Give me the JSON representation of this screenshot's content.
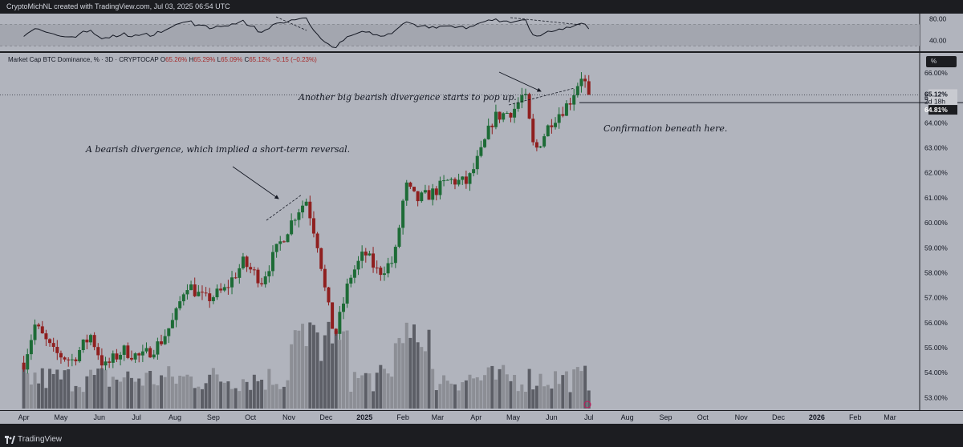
{
  "header": {
    "credit": "CryptoMichNL created with TradingView.com, Jul 03, 2025 06:54 UTC"
  },
  "legend": {
    "symbol": "Market Cap BTC Dominance, % · 3D · CRYPTOCAP",
    "o_label": "O",
    "o": "65.26%",
    "h_label": "H",
    "h": "65.29%",
    "l_label": "L",
    "l": "65.09%",
    "c_label": "C",
    "c": "65.12%",
    "chg": "−0.15 (−0.23%)"
  },
  "toolbar": {
    "percent_button": "%"
  },
  "annotations": {
    "first": "A bearish divergence, which implied a short-term reversal.",
    "second": "Another big bearish divergence starts to pop up.",
    "third": "Confirmation beneath here."
  },
  "price_tag": {
    "value": "65.12%",
    "countdown": "2d 18h"
  },
  "level_tag": {
    "value": "64.81%"
  },
  "footer": {
    "brand": "TradingView"
  },
  "colors": {
    "up": "#1d6b36",
    "down": "#8f1f1f",
    "bg": "#b1b4bd",
    "dark": "#1c1d21",
    "volume": "#5c5e66"
  },
  "chart_data": [
    {
      "type": "candlestick",
      "title": "Market Cap BTC Dominance, % · 3D · CRYPTOCAP",
      "x_ticks": [
        "Apr",
        "May",
        "Jun",
        "Jul",
        "Aug",
        "Sep",
        "Oct",
        "Nov",
        "Dec",
        "2025",
        "Feb",
        "Mar",
        "Apr",
        "May",
        "Jun",
        "Jul",
        "Aug",
        "Sep",
        "Oct",
        "Nov",
        "Dec",
        "2026",
        "Feb",
        "Mar"
      ],
      "y_ticks": [
        "53.00%",
        "54.00%",
        "55.00%",
        "56.00%",
        "57.00%",
        "58.00%",
        "59.00%",
        "60.00%",
        "61.00%",
        "62.00%",
        "63.00%",
        "64.00%",
        "65.00%",
        "66.00%"
      ],
      "ylim": [
        52.5,
        66.8
      ],
      "anchors": [
        {
          "x": "2024-04-01",
          "close": 54.4
        },
        {
          "x": "2024-04-10",
          "close": 55.9
        },
        {
          "x": "2024-04-25",
          "close": 54.8
        },
        {
          "x": "2024-05-10",
          "close": 54.5
        },
        {
          "x": "2024-05-25",
          "close": 55.5
        },
        {
          "x": "2024-06-05",
          "close": 54.2
        },
        {
          "x": "2024-06-20",
          "close": 54.9
        },
        {
          "x": "2024-07-05",
          "close": 54.6
        },
        {
          "x": "2024-07-20",
          "close": 55.2
        },
        {
          "x": "2024-08-01",
          "close": 56.2
        },
        {
          "x": "2024-08-10",
          "close": 57.6
        },
        {
          "x": "2024-08-25",
          "close": 56.9
        },
        {
          "x": "2024-09-10",
          "close": 57.3
        },
        {
          "x": "2024-09-25",
          "close": 58.4
        },
        {
          "x": "2024-10-10",
          "close": 57.7
        },
        {
          "x": "2024-10-25",
          "close": 59.2
        },
        {
          "x": "2024-11-08",
          "close": 60.5
        },
        {
          "x": "2024-11-15",
          "close": 60.9
        },
        {
          "x": "2024-11-25",
          "close": 59.0
        },
        {
          "x": "2024-12-01",
          "close": 57.0
        },
        {
          "x": "2024-12-08",
          "close": 55.4
        },
        {
          "x": "2024-12-20",
          "close": 57.8
        },
        {
          "x": "2025-01-01",
          "close": 58.8
        },
        {
          "x": "2025-01-12",
          "close": 58.0
        },
        {
          "x": "2025-01-25",
          "close": 58.5
        },
        {
          "x": "2025-02-03",
          "close": 61.5
        },
        {
          "x": "2025-02-12",
          "close": 60.9
        },
        {
          "x": "2025-02-25",
          "close": 61.2
        },
        {
          "x": "2025-03-10",
          "close": 61.7
        },
        {
          "x": "2025-03-25",
          "close": 61.6
        },
        {
          "x": "2025-04-05",
          "close": 62.8
        },
        {
          "x": "2025-04-15",
          "close": 64.2
        },
        {
          "x": "2025-05-01",
          "close": 64.5
        },
        {
          "x": "2025-05-10",
          "close": 65.2
        },
        {
          "x": "2025-05-18",
          "close": 62.8
        },
        {
          "x": "2025-06-01",
          "close": 64.1
        },
        {
          "x": "2025-06-15",
          "close": 64.8
        },
        {
          "x": "2025-06-25",
          "close": 65.9
        },
        {
          "x": "2025-07-02",
          "close": 65.12
        }
      ],
      "last_price": 65.12,
      "level_line": 64.81
    },
    {
      "type": "line",
      "title": "RSI",
      "y_ticks": [
        "80.00",
        "40.00"
      ],
      "ylim": [
        20,
        90
      ],
      "band": [
        30,
        70
      ]
    }
  ]
}
